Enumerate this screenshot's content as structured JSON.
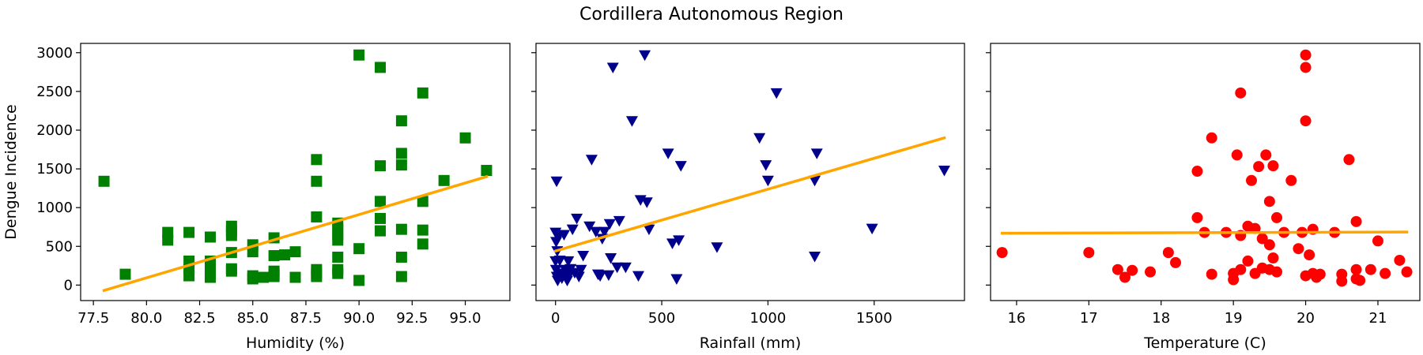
{
  "figure": {
    "title": "Cordillera Autonomous Region"
  },
  "chart_data": [
    {
      "type": "scatter",
      "xlabel": "Humidity (%)",
      "ylabel": "Dengue Incidence",
      "xlim": [
        76.9,
        97.1
      ],
      "ylim": [
        -200,
        3120
      ],
      "xticks": [
        77.5,
        80.0,
        82.5,
        85.0,
        87.5,
        90.0,
        92.5,
        95.0
      ],
      "xtick_labels": [
        "77.5",
        "80.0",
        "82.5",
        "85.0",
        "87.5",
        "90.0",
        "92.5",
        "95.0"
      ],
      "yticks": [
        0,
        500,
        1000,
        1500,
        2000,
        2500,
        3000
      ],
      "ytick_labels": [
        "0",
        "500",
        "1000",
        "1500",
        "2000",
        "2500",
        "3000"
      ],
      "marker": "square",
      "color": "#008000",
      "trend_color": "#FFA500",
      "points": [
        [
          78,
          1340
        ],
        [
          79,
          140
        ],
        [
          81,
          580
        ],
        [
          81,
          680
        ],
        [
          82,
          120
        ],
        [
          82,
          200
        ],
        [
          82,
          310
        ],
        [
          82,
          680
        ],
        [
          83,
          100
        ],
        [
          83,
          150
        ],
        [
          83,
          210
        ],
        [
          83,
          310
        ],
        [
          83,
          620
        ],
        [
          84,
          180
        ],
        [
          84,
          210
        ],
        [
          84,
          420
        ],
        [
          84,
          640
        ],
        [
          84,
          700
        ],
        [
          84,
          760
        ],
        [
          85,
          80
        ],
        [
          85,
          120
        ],
        [
          85,
          430
        ],
        [
          85,
          520
        ],
        [
          85.5,
          100
        ],
        [
          86,
          110
        ],
        [
          86,
          140
        ],
        [
          86,
          180
        ],
        [
          86,
          380
        ],
        [
          86,
          610
        ],
        [
          86.5,
          390
        ],
        [
          87,
          100
        ],
        [
          87,
          430
        ],
        [
          88,
          110
        ],
        [
          88,
          150
        ],
        [
          88,
          200
        ],
        [
          88,
          880
        ],
        [
          88,
          1340
        ],
        [
          88,
          1620
        ],
        [
          89,
          150
        ],
        [
          89,
          200
        ],
        [
          89,
          360
        ],
        [
          89,
          580
        ],
        [
          89,
          650
        ],
        [
          89,
          720
        ],
        [
          89,
          800
        ],
        [
          90,
          60
        ],
        [
          90,
          470
        ],
        [
          90,
          2970
        ],
        [
          91,
          700
        ],
        [
          91,
          860
        ],
        [
          91,
          1080
        ],
        [
          91,
          1540
        ],
        [
          91,
          2810
        ],
        [
          92,
          110
        ],
        [
          92,
          360
        ],
        [
          92,
          720
        ],
        [
          92,
          1550
        ],
        [
          92,
          1700
        ],
        [
          92,
          2120
        ],
        [
          93,
          530
        ],
        [
          93,
          710
        ],
        [
          93,
          1080
        ],
        [
          93,
          2480
        ],
        [
          94,
          1350
        ],
        [
          95,
          1900
        ],
        [
          96,
          1480
        ]
      ],
      "trend": [
        [
          78,
          -70
        ],
        [
          96,
          1400
        ]
      ]
    },
    {
      "type": "scatter",
      "xlabel": "Rainfall (mm)",
      "ylabel": "",
      "xlim": [
        -92,
        1925
      ],
      "ylim": [
        -200,
        3120
      ],
      "xticks": [
        0,
        500,
        1000,
        1500
      ],
      "xtick_labels": [
        "0",
        "500",
        "1000",
        "1500"
      ],
      "marker": "triangle-down",
      "color": "#00008B",
      "trend_color": "#FFA500",
      "points": [
        [
          5,
          1340
        ],
        [
          0,
          680
        ],
        [
          3,
          560
        ],
        [
          8,
          440
        ],
        [
          0,
          310
        ],
        [
          2,
          200
        ],
        [
          6,
          110
        ],
        [
          10,
          60
        ],
        [
          15,
          640
        ],
        [
          20,
          320
        ],
        [
          25,
          150
        ],
        [
          30,
          90
        ],
        [
          40,
          650
        ],
        [
          45,
          200
        ],
        [
          50,
          100
        ],
        [
          55,
          60
        ],
        [
          60,
          310
        ],
        [
          65,
          140
        ],
        [
          70,
          210
        ],
        [
          80,
          720
        ],
        [
          90,
          160
        ],
        [
          100,
          860
        ],
        [
          110,
          110
        ],
        [
          120,
          200
        ],
        [
          130,
          380
        ],
        [
          160,
          760
        ],
        [
          170,
          1620
        ],
        [
          190,
          690
        ],
        [
          200,
          140
        ],
        [
          210,
          120
        ],
        [
          220,
          600
        ],
        [
          230,
          690
        ],
        [
          250,
          130
        ],
        [
          255,
          790
        ],
        [
          260,
          350
        ],
        [
          270,
          2810
        ],
        [
          290,
          230
        ],
        [
          300,
          830
        ],
        [
          330,
          230
        ],
        [
          360,
          2120
        ],
        [
          390,
          120
        ],
        [
          400,
          1100
        ],
        [
          420,
          2970
        ],
        [
          430,
          1070
        ],
        [
          440,
          720
        ],
        [
          530,
          1700
        ],
        [
          550,
          540
        ],
        [
          570,
          80
        ],
        [
          580,
          580
        ],
        [
          590,
          1540
        ],
        [
          760,
          490
        ],
        [
          960,
          1900
        ],
        [
          990,
          1550
        ],
        [
          1000,
          1350
        ],
        [
          1040,
          2480
        ],
        [
          1220,
          370
        ],
        [
          1220,
          1350
        ],
        [
          1230,
          1700
        ],
        [
          1490,
          730
        ],
        [
          1830,
          1480
        ]
      ],
      "trend": [
        [
          0,
          440
        ],
        [
          1830,
          1900
        ]
      ]
    },
    {
      "type": "scatter",
      "xlabel": "Temperature (C)",
      "ylabel": "",
      "xlim": [
        15.64,
        21.58
      ],
      "ylim": [
        -200,
        3120
      ],
      "xticks": [
        16,
        17,
        18,
        19,
        20,
        21
      ],
      "xtick_labels": [
        "16",
        "17",
        "18",
        "19",
        "20",
        "21"
      ],
      "marker": "circle",
      "color": "#FF0000",
      "trend_color": "#FFA500",
      "points": [
        [
          15.8,
          420
        ],
        [
          17.0,
          420
        ],
        [
          17.4,
          200
        ],
        [
          17.5,
          100
        ],
        [
          17.6,
          190
        ],
        [
          17.85,
          170
        ],
        [
          18.1,
          420
        ],
        [
          18.2,
          290
        ],
        [
          18.5,
          870
        ],
        [
          18.5,
          1470
        ],
        [
          18.6,
          680
        ],
        [
          18.7,
          140
        ],
        [
          18.7,
          1900
        ],
        [
          18.9,
          680
        ],
        [
          19.0,
          70
        ],
        [
          19.0,
          150
        ],
        [
          19.05,
          1680
        ],
        [
          19.1,
          200
        ],
        [
          19.1,
          640
        ],
        [
          19.1,
          2480
        ],
        [
          19.2,
          310
        ],
        [
          19.2,
          760
        ],
        [
          19.25,
          1350
        ],
        [
          19.3,
          150
        ],
        [
          19.3,
          730
        ],
        [
          19.35,
          1530
        ],
        [
          19.4,
          220
        ],
        [
          19.4,
          600
        ],
        [
          19.45,
          1680
        ],
        [
          19.5,
          200
        ],
        [
          19.5,
          520
        ],
        [
          19.5,
          1080
        ],
        [
          19.55,
          350
        ],
        [
          19.55,
          1540
        ],
        [
          19.6,
          170
        ],
        [
          19.6,
          870
        ],
        [
          19.7,
          680
        ],
        [
          19.8,
          1350
        ],
        [
          19.9,
          470
        ],
        [
          19.95,
          680
        ],
        [
          20.0,
          120
        ],
        [
          20.0,
          2120
        ],
        [
          20.0,
          2810
        ],
        [
          20.0,
          2970
        ],
        [
          20.05,
          390
        ],
        [
          20.1,
          150
        ],
        [
          20.1,
          720
        ],
        [
          20.15,
          100
        ],
        [
          20.2,
          140
        ],
        [
          20.4,
          680
        ],
        [
          20.5,
          50
        ],
        [
          20.5,
          140
        ],
        [
          20.6,
          1620
        ],
        [
          20.7,
          80
        ],
        [
          20.7,
          200
        ],
        [
          20.7,
          820
        ],
        [
          20.75,
          60
        ],
        [
          20.9,
          200
        ],
        [
          21.0,
          570
        ],
        [
          21.1,
          150
        ],
        [
          21.3,
          320
        ],
        [
          21.4,
          170
        ]
      ],
      "trend": [
        [
          15.8,
          670
        ],
        [
          21.4,
          685
        ]
      ]
    }
  ]
}
